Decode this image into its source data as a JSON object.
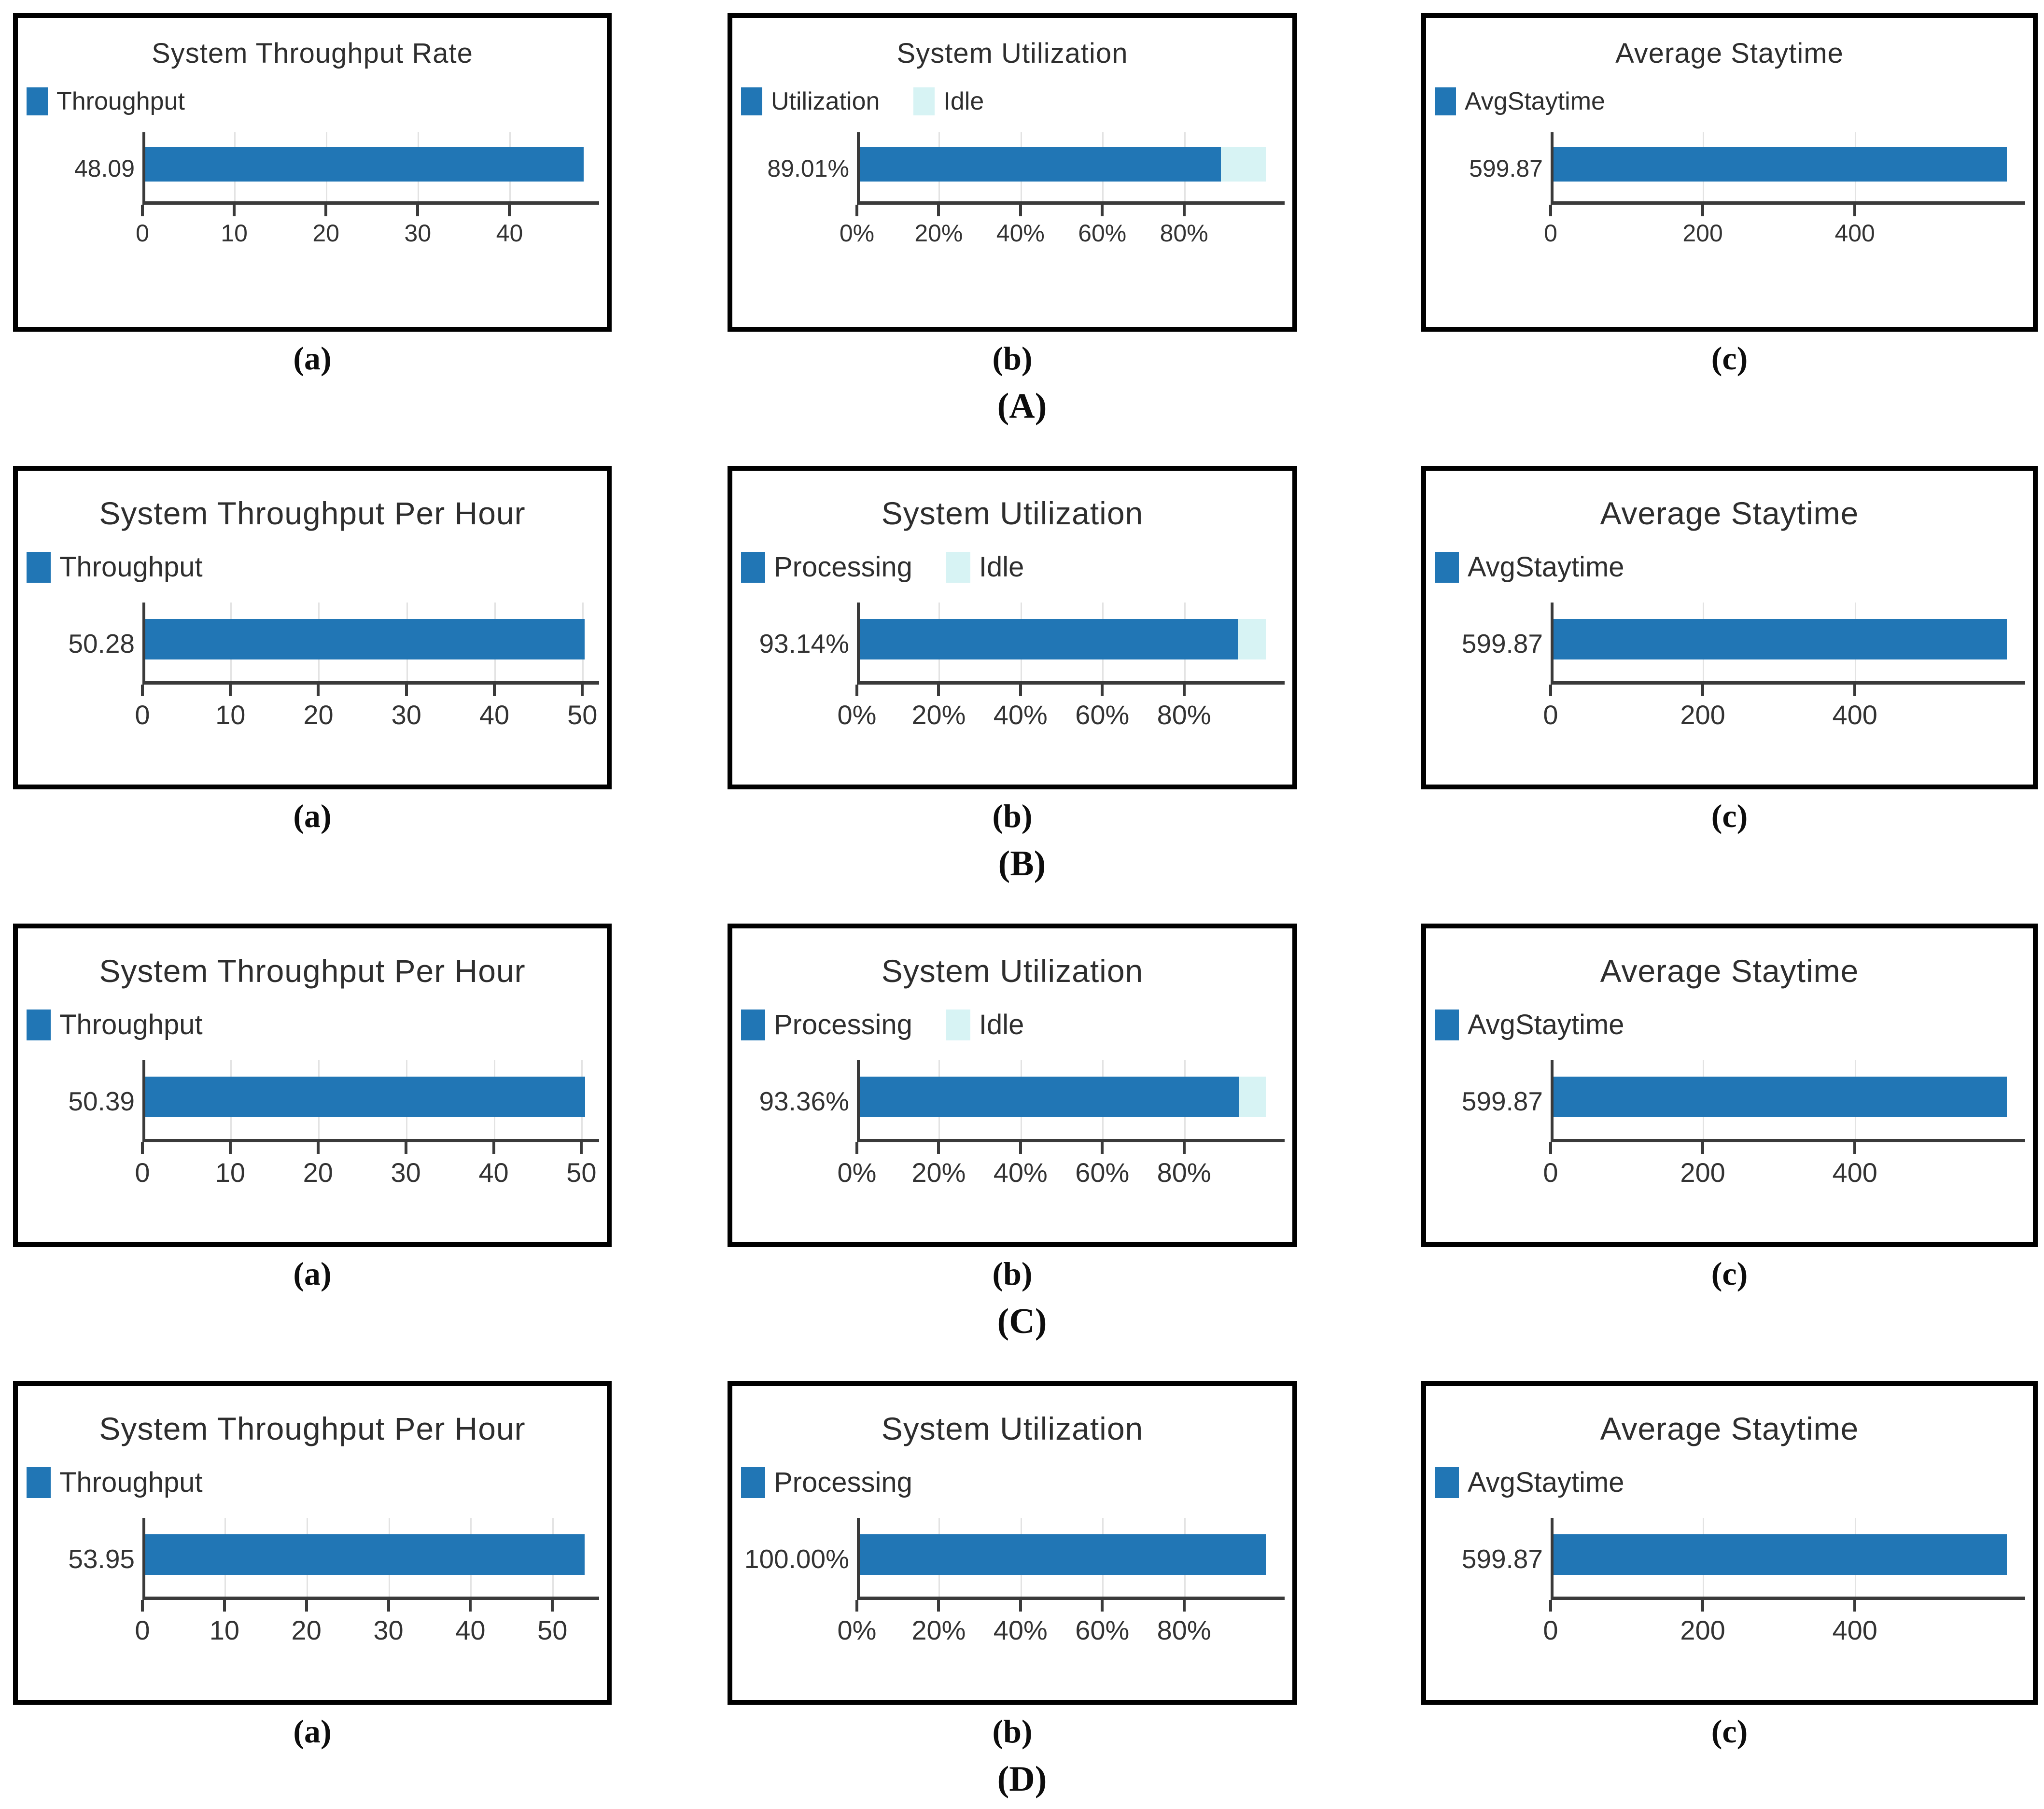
{
  "colors": {
    "bar": "#2176b5",
    "idle": "#d7f3f4",
    "axis": "#3a3a3a",
    "grid": "#e3e3e3",
    "text": "#2e2e2e",
    "border": "#000000",
    "background": "#ffffff"
  },
  "chart_data": {
    "type": "bar",
    "orientation": "horizontal",
    "grid": "vertical-light",
    "legend_position": "top-left",
    "rows": [
      {
        "label": "(A)",
        "size": "sm",
        "charts": [
          {
            "caption": "(a)",
            "title": "System Throughput Rate",
            "legend": [
              {
                "label": "Throughput",
                "color_key": "bar"
              }
            ],
            "categories": [
              "Throughput"
            ],
            "values": [
              48.09
            ],
            "value_label": "48.09",
            "xlim": [
              0,
              48.6
            ],
            "ticks": [
              {
                "v": 0,
                "label": "0"
              },
              {
                "v": 10,
                "label": "10"
              },
              {
                "v": 20,
                "label": "20"
              },
              {
                "v": 30,
                "label": "30"
              },
              {
                "v": 40,
                "label": "40"
              }
            ]
          },
          {
            "caption": "(b)",
            "title": "System Utilization",
            "legend": [
              {
                "label": "Utilization",
                "color_key": "bar"
              },
              {
                "label": "Idle",
                "color_key": "idle"
              }
            ],
            "categories": [
              "Utilization",
              "Idle"
            ],
            "values": [
              89.01,
              10.99
            ],
            "value_label": "89.01%",
            "idle_to": 100,
            "xlim": [
              0,
              102
            ],
            "ticks": [
              {
                "v": 0,
                "label": "0%"
              },
              {
                "v": 20,
                "label": "20%"
              },
              {
                "v": 40,
                "label": "40%"
              },
              {
                "v": 60,
                "label": "60%"
              },
              {
                "v": 80,
                "label": "80%"
              }
            ]
          },
          {
            "caption": "(c)",
            "title": "Average Staytime",
            "legend": [
              {
                "label": "AvgStaytime",
                "color_key": "bar"
              }
            ],
            "categories": [
              "AvgStaytime"
            ],
            "values": [
              599.87
            ],
            "value_label": "599.87",
            "xlim": [
              0,
              610
            ],
            "ticks": [
              {
                "v": 0,
                "label": "0"
              },
              {
                "v": 200,
                "label": "200"
              },
              {
                "v": 400,
                "label": "400"
              }
            ]
          }
        ]
      },
      {
        "label": "(B)",
        "size": "lg",
        "charts": [
          {
            "caption": "(a)",
            "title": "System Throughput Per Hour",
            "legend": [
              {
                "label": "Throughput",
                "color_key": "bar"
              }
            ],
            "categories": [
              "Throughput"
            ],
            "values": [
              50.28
            ],
            "value_label": "50.28",
            "xlim": [
              0,
              50.7
            ],
            "ticks": [
              {
                "v": 0,
                "label": "0"
              },
              {
                "v": 10,
                "label": "10"
              },
              {
                "v": 20,
                "label": "20"
              },
              {
                "v": 30,
                "label": "30"
              },
              {
                "v": 40,
                "label": "40"
              },
              {
                "v": 50,
                "label": "50"
              }
            ]
          },
          {
            "caption": "(b)",
            "title": "System Utilization",
            "legend": [
              {
                "label": "Processing",
                "color_key": "bar"
              },
              {
                "label": "Idle",
                "color_key": "idle"
              }
            ],
            "categories": [
              "Processing",
              "Idle"
            ],
            "values": [
              93.14,
              6.86
            ],
            "value_label": "93.14%",
            "idle_to": 100,
            "xlim": [
              0,
              102
            ],
            "ticks": [
              {
                "v": 0,
                "label": "0%"
              },
              {
                "v": 20,
                "label": "20%"
              },
              {
                "v": 40,
                "label": "40%"
              },
              {
                "v": 60,
                "label": "60%"
              },
              {
                "v": 80,
                "label": "80%"
              }
            ]
          },
          {
            "caption": "(c)",
            "title": "Average Staytime",
            "legend": [
              {
                "label": "AvgStaytime",
                "color_key": "bar"
              }
            ],
            "categories": [
              "AvgStaytime"
            ],
            "values": [
              599.87
            ],
            "value_label": "599.87",
            "xlim": [
              0,
              610
            ],
            "ticks": [
              {
                "v": 0,
                "label": "0"
              },
              {
                "v": 200,
                "label": "200"
              },
              {
                "v": 400,
                "label": "400"
              }
            ]
          }
        ]
      },
      {
        "label": "(C)",
        "size": "lg",
        "charts": [
          {
            "caption": "(a)",
            "title": "System Throughput Per Hour",
            "legend": [
              {
                "label": "Throughput",
                "color_key": "bar"
              }
            ],
            "categories": [
              "Throughput"
            ],
            "values": [
              50.39
            ],
            "value_label": "50.39",
            "xlim": [
              0,
              50.8
            ],
            "ticks": [
              {
                "v": 0,
                "label": "0"
              },
              {
                "v": 10,
                "label": "10"
              },
              {
                "v": 20,
                "label": "20"
              },
              {
                "v": 30,
                "label": "30"
              },
              {
                "v": 40,
                "label": "40"
              },
              {
                "v": 50,
                "label": "50"
              }
            ]
          },
          {
            "caption": "(b)",
            "title": "System Utilization",
            "legend": [
              {
                "label": "Processing",
                "color_key": "bar"
              },
              {
                "label": "Idle",
                "color_key": "idle"
              }
            ],
            "categories": [
              "Processing",
              "Idle"
            ],
            "values": [
              93.36,
              6.64
            ],
            "value_label": "93.36%",
            "idle_to": 100,
            "xlim": [
              0,
              102
            ],
            "ticks": [
              {
                "v": 0,
                "label": "0%"
              },
              {
                "v": 20,
                "label": "20%"
              },
              {
                "v": 40,
                "label": "40%"
              },
              {
                "v": 60,
                "label": "60%"
              },
              {
                "v": 80,
                "label": "80%"
              }
            ]
          },
          {
            "caption": "(c)",
            "title": "Average Staytime",
            "legend": [
              {
                "label": "AvgStaytime",
                "color_key": "bar"
              }
            ],
            "categories": [
              "AvgStaytime"
            ],
            "values": [
              599.87
            ],
            "value_label": "599.87",
            "xlim": [
              0,
              610
            ],
            "ticks": [
              {
                "v": 0,
                "label": "0"
              },
              {
                "v": 200,
                "label": "200"
              },
              {
                "v": 400,
                "label": "400"
              }
            ]
          }
        ]
      },
      {
        "label": "(D)",
        "size": "lg",
        "charts": [
          {
            "caption": "(a)",
            "title": "System Throughput Per Hour",
            "legend": [
              {
                "label": "Throughput",
                "color_key": "bar"
              }
            ],
            "categories": [
              "Throughput"
            ],
            "values": [
              53.95
            ],
            "value_label": "53.95",
            "xlim": [
              0,
              54.4
            ],
            "ticks": [
              {
                "v": 0,
                "label": "0"
              },
              {
                "v": 10,
                "label": "10"
              },
              {
                "v": 20,
                "label": "20"
              },
              {
                "v": 30,
                "label": "30"
              },
              {
                "v": 40,
                "label": "40"
              },
              {
                "v": 50,
                "label": "50"
              }
            ]
          },
          {
            "caption": "(b)",
            "title": "System Utilization",
            "legend": [
              {
                "label": "Processing",
                "color_key": "bar"
              }
            ],
            "categories": [
              "Processing"
            ],
            "values": [
              100.0
            ],
            "value_label": "100.00%",
            "xlim": [
              0,
              102
            ],
            "ticks": [
              {
                "v": 0,
                "label": "0%"
              },
              {
                "v": 20,
                "label": "20%"
              },
              {
                "v": 40,
                "label": "40%"
              },
              {
                "v": 60,
                "label": "60%"
              },
              {
                "v": 80,
                "label": "80%"
              }
            ]
          },
          {
            "caption": "(c)",
            "title": "Average Staytime",
            "legend": [
              {
                "label": "AvgStaytime",
                "color_key": "bar"
              }
            ],
            "categories": [
              "AvgStaytime"
            ],
            "values": [
              599.87
            ],
            "value_label": "599.87",
            "xlim": [
              0,
              610
            ],
            "ticks": [
              {
                "v": 0,
                "label": "0"
              },
              {
                "v": 200,
                "label": "200"
              },
              {
                "v": 400,
                "label": "400"
              }
            ]
          }
        ]
      }
    ]
  }
}
